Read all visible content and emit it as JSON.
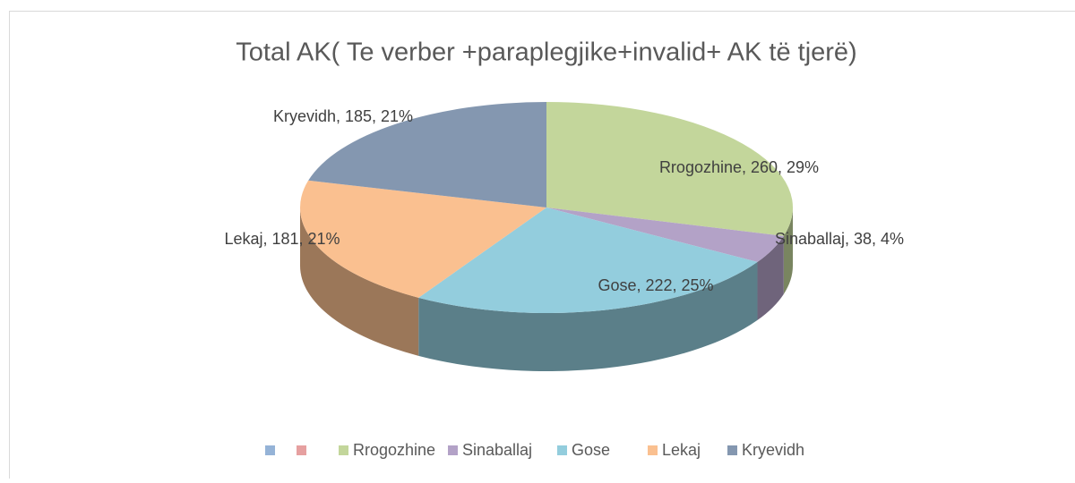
{
  "chart_data": {
    "type": "pie",
    "title": "Total AK( Te verber +paraplegjike+invalid+ AK të tjerë)",
    "categories": [
      null,
      null,
      "Rrogozhine",
      "Sinaballaj",
      "Gose",
      "Lekaj",
      "Kryevidh"
    ],
    "values": [
      null,
      null,
      260,
      38,
      222,
      181,
      185
    ],
    "value_labels": [
      null,
      null,
      "Rrogozhine, 260, 29%",
      "Sinaballaj, 38, 4%",
      "Gose, 222, 25%",
      "Lekaj, 181, 21%",
      "Kryevidh, 185, 21%"
    ],
    "colors": [
      "#95b3d7",
      "#e6a0a0",
      "#c3d69b",
      "#b3a2c7",
      "#93cddd",
      "#fac090",
      "#8497b0"
    ],
    "legend": "bottom"
  }
}
